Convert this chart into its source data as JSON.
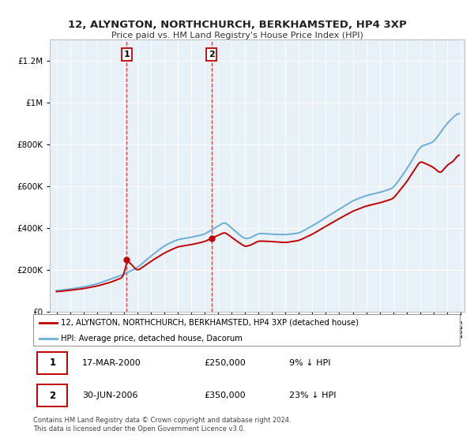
{
  "title": "12, ALYNGTON, NORTHCHURCH, BERKHAMSTED, HP4 3XP",
  "subtitle": "Price paid vs. HM Land Registry's House Price Index (HPI)",
  "ylim": [
    0,
    1300000
  ],
  "yticks": [
    0,
    200000,
    400000,
    600000,
    800000,
    1000000,
    1200000
  ],
  "ytick_labels": [
    "£0",
    "£200K",
    "£400K",
    "£600K",
    "£800K",
    "£1M",
    "£1.2M"
  ],
  "hpi_color": "#6baed6",
  "price_color": "#c00000",
  "sale1_year": 2000.21,
  "sale1_price": 250000,
  "sale2_year": 2006.5,
  "sale2_price": 350000,
  "legend_entry1": "12, ALYNGTON, NORTHCHURCH, BERKHAMSTED, HP4 3XP (detached house)",
  "legend_entry2": "HPI: Average price, detached house, Dacorum",
  "footnote1": "Contains HM Land Registry data © Crown copyright and database right 2024.",
  "footnote2": "This data is licensed under the Open Government Licence v3.0.",
  "background_color": "#ffffff",
  "plot_bg_color": "#e8f0f8"
}
